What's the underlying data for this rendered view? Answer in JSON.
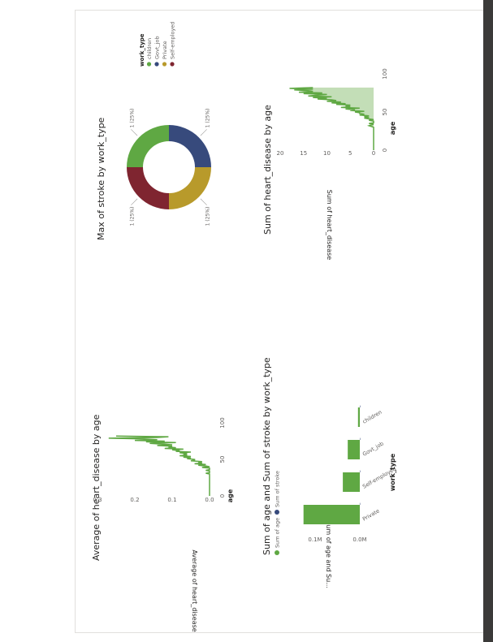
{
  "colors": {
    "green": "#5fa843",
    "green_fill": "#c3deb7",
    "navy": "#374a7c",
    "gold": "#b89a2b",
    "maroon": "#7f2530",
    "axis_text": "#605e5c",
    "gridline": "#e8e8e8"
  },
  "chart_data": [
    {
      "type": "line",
      "title": "Average of heart_disease by age",
      "xlabel": "age",
      "ylabel": "Average of heart_disease",
      "xlim": [
        0,
        100
      ],
      "ylim": [
        0,
        0.3
      ],
      "x_ticks": [
        "0",
        "50",
        "100"
      ],
      "y_ticks": [
        "0.0",
        "0.1",
        "0.2",
        "0.3"
      ],
      "x": [
        0,
        1,
        2,
        5,
        8,
        10,
        15,
        20,
        25,
        30,
        31,
        32,
        33,
        34,
        35,
        36,
        37,
        38,
        39,
        40,
        41,
        42,
        43,
        44,
        45,
        46,
        47,
        48,
        49,
        50,
        51,
        52,
        53,
        54,
        55,
        56,
        57,
        58,
        59,
        60,
        61,
        62,
        63,
        64,
        65,
        66,
        67,
        68,
        69,
        70,
        71,
        72,
        73,
        74,
        75,
        76,
        77,
        78,
        79,
        80,
        81,
        82
      ],
      "y": [
        0,
        0,
        0,
        0,
        0,
        0,
        0,
        0,
        0,
        0,
        0.01,
        0,
        0,
        0,
        0.01,
        0,
        0,
        0,
        0.02,
        0,
        0.01,
        0.03,
        0.01,
        0.04,
        0.02,
        0.03,
        0.02,
        0.05,
        0.04,
        0.04,
        0.06,
        0.05,
        0.07,
        0.05,
        0.08,
        0.06,
        0.07,
        0.06,
        0.08,
        0.05,
        0.09,
        0.08,
        0.1,
        0.07,
        0.12,
        0.09,
        0.11,
        0.1,
        0.14,
        0.1,
        0.13,
        0.16,
        0.09,
        0.17,
        0.12,
        0.2,
        0.14,
        0.18,
        0.27,
        0.14,
        0.11,
        0.25
      ]
    },
    {
      "type": "donut",
      "title": "Max of stroke by work_type",
      "legend_title": "work_type",
      "categories": [
        "children",
        "Govt_job",
        "Private",
        "Self-employed"
      ],
      "values": [
        1,
        1,
        1,
        1
      ],
      "data_labels": [
        "1 (25%)",
        "1 (25%)",
        "1 (25%)",
        "1 (25%)"
      ]
    },
    {
      "type": "bar",
      "title": "Sum of age and Sum of stroke by work_type",
      "xlabel": "work_type",
      "ylabel": "Sum of age and Su...",
      "categories": [
        "Private",
        "Self-employed",
        "Govt_job",
        "children"
      ],
      "series": [
        {
          "name": "Sum of age",
          "values": [
            126000,
            38000,
            27000,
            4000
          ]
        },
        {
          "name": "Sum of stroke",
          "values": [
            149,
            65,
            33,
            2
          ]
        }
      ],
      "ylim": [
        0,
        140000
      ],
      "y_ticks": [
        "0.0M",
        "0.1M"
      ]
    },
    {
      "type": "area",
      "title": "Sum of heart_disease by age",
      "xlabel": "age",
      "ylabel": "Sum of heart_disease",
      "xlim": [
        0,
        100
      ],
      "ylim": [
        0,
        20
      ],
      "x_ticks": [
        "0",
        "50",
        "100"
      ],
      "y_ticks": [
        "0",
        "5",
        "10",
        "15",
        "20"
      ],
      "x": [
        0,
        1,
        2,
        5,
        8,
        10,
        15,
        20,
        25,
        30,
        32,
        34,
        35,
        36,
        38,
        39,
        40,
        41,
        42,
        43,
        44,
        45,
        46,
        47,
        48,
        49,
        50,
        51,
        52,
        53,
        54,
        55,
        56,
        57,
        58,
        59,
        60,
        61,
        62,
        63,
        64,
        65,
        66,
        67,
        68,
        69,
        70,
        71,
        72,
        73,
        74,
        75,
        76,
        77,
        78,
        79,
        80,
        81,
        82
      ],
      "y": [
        0,
        0,
        0,
        0,
        0,
        0,
        0,
        0,
        0,
        0,
        1,
        0,
        1,
        0,
        0,
        1,
        0,
        1,
        2,
        1,
        2,
        1,
        3,
        2,
        3,
        3,
        4,
        2,
        5,
        4,
        6,
        3,
        7,
        5,
        6,
        5,
        8,
        6,
        9,
        7,
        10,
        8,
        9,
        12,
        10,
        13,
        9,
        14,
        12,
        10,
        15,
        11,
        16,
        13,
        14,
        17,
        13,
        18,
        13
      ]
    }
  ]
}
